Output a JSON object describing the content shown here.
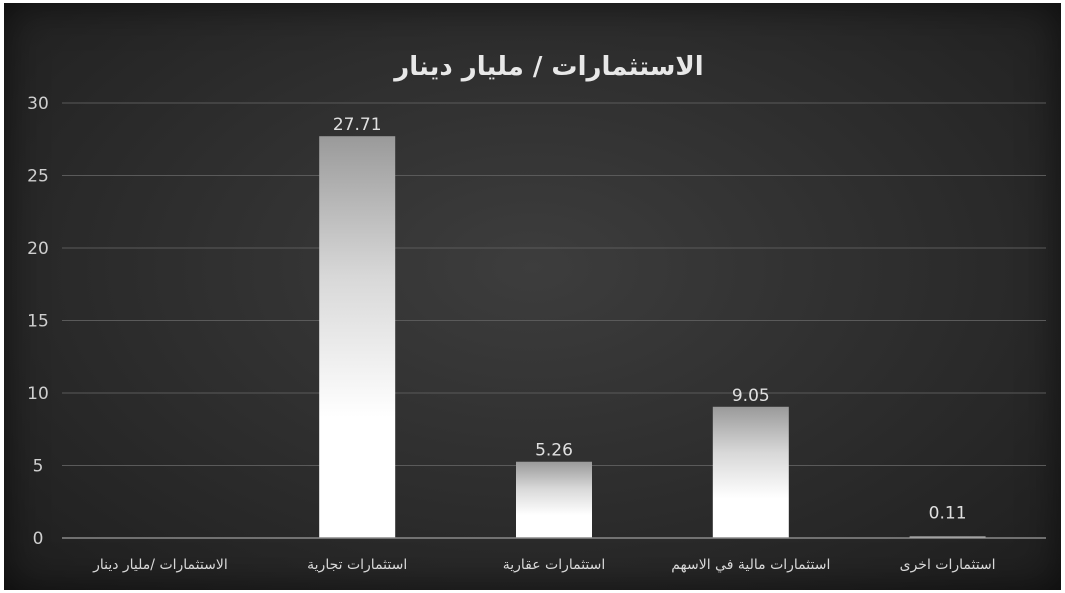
{
  "chart_data": {
    "type": "bar",
    "title": "الاستثمارات / مليار دينار",
    "categories": [
      "الاستثمارات /مليار دينار",
      "استثمارات تجارية",
      "استثمارات عقارية",
      "استثمارات مالية في الاسهم",
      "استثمارات اخرى"
    ],
    "series": [
      {
        "values": [
          null,
          27.71,
          5.26,
          9.05,
          0.11
        ]
      }
    ],
    "data_labels": [
      "",
      "27.71",
      "5.26",
      "9.05",
      "0.11"
    ],
    "ylim": [
      0,
      30
    ],
    "yticks": [
      0,
      5,
      10,
      15,
      20,
      25,
      30
    ],
    "grid": true,
    "legend": "none",
    "colors": {
      "background": "#2c2c2c",
      "bar_top": "#bdbdbd",
      "bar_bottom": "#ffffff",
      "grid": "#5a5a5a",
      "text": "#d8d8d8"
    }
  }
}
